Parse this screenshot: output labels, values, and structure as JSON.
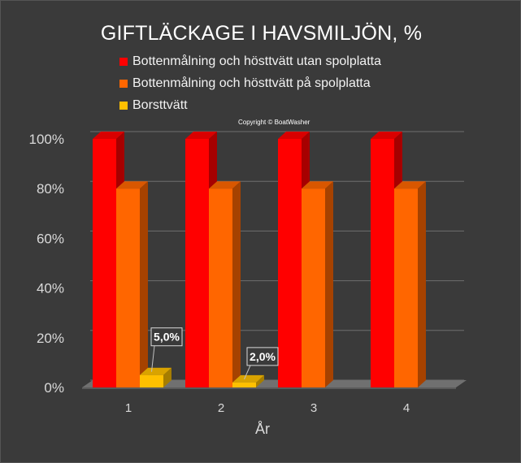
{
  "chart_data": {
    "type": "bar",
    "title": "GIFTLÄCKAGE I HAVSMILJÖN, %",
    "copyright": "Copyright © BoatWasher",
    "xlabel": "År",
    "ylabel": "",
    "categories": [
      "1",
      "2",
      "3",
      "4"
    ],
    "yticks": [
      "0%",
      "20%",
      "40%",
      "60%",
      "80%",
      "100%"
    ],
    "ylim": [
      0,
      100
    ],
    "grid": true,
    "legend_position": "top",
    "style": "3d-clustered-bar",
    "series": [
      {
        "name": "Bottenmålning och hösttvätt utan spolplatta",
        "color": "#ff0000",
        "values": [
          100,
          100,
          100,
          100
        ]
      },
      {
        "name": "Bottenmålning och hösttvätt på spolplatta",
        "color": "#ff6600",
        "values": [
          80,
          80,
          80,
          80
        ]
      },
      {
        "name": "Borsttvätt",
        "color": "#ffc000",
        "values": [
          5.0,
          2.0,
          null,
          null
        ]
      }
    ],
    "data_labels": [
      {
        "series": 2,
        "category": 0,
        "text": "5,0%"
      },
      {
        "series": 2,
        "category": 1,
        "text": "2,0%"
      }
    ]
  },
  "colors": {
    "background": "#3a3a3a",
    "text": "#ffffff",
    "axis_text": "#d9d9d9",
    "grid": "#6e6e6e"
  }
}
